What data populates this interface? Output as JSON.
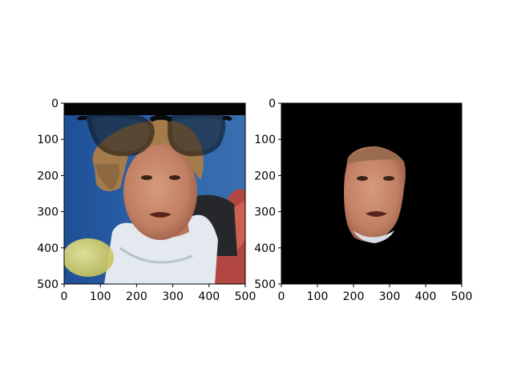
{
  "chart_data": [
    {
      "type": "image",
      "title": "",
      "xlabel": "",
      "ylabel": "",
      "xlim": [
        0,
        500
      ],
      "ylim": [
        500,
        0
      ],
      "xticks": [
        0,
        100,
        200,
        300,
        400,
        500
      ],
      "yticks": [
        0,
        100,
        200,
        300,
        400,
        500
      ],
      "xtick_labels": [
        "0",
        "100",
        "200",
        "300",
        "400",
        "500"
      ],
      "ytick_labels": [
        "0",
        "100",
        "200",
        "300",
        "400",
        "500"
      ],
      "image_content": "face-photo-with-glasses-overlay"
    },
    {
      "type": "image",
      "title": "",
      "xlabel": "",
      "ylabel": "",
      "xlim": [
        0,
        500
      ],
      "ylim": [
        500,
        0
      ],
      "xticks": [
        0,
        100,
        200,
        300,
        400,
        500
      ],
      "yticks": [
        0,
        100,
        200,
        300,
        400,
        500
      ],
      "xtick_labels": [
        "0",
        "100",
        "200",
        "300",
        "400",
        "500"
      ],
      "ytick_labels": [
        "0",
        "100",
        "200",
        "300",
        "400",
        "500"
      ],
      "image_content": "masked-face-on-black"
    }
  ],
  "colors": {
    "axes_frame": "#000000",
    "mask_background": "#000000",
    "photo_background": "#2a5fa5",
    "shirt": "#dfe6ee",
    "skin": "#c98a6c",
    "hair": "#a27a4c",
    "glasses": "#111111"
  }
}
